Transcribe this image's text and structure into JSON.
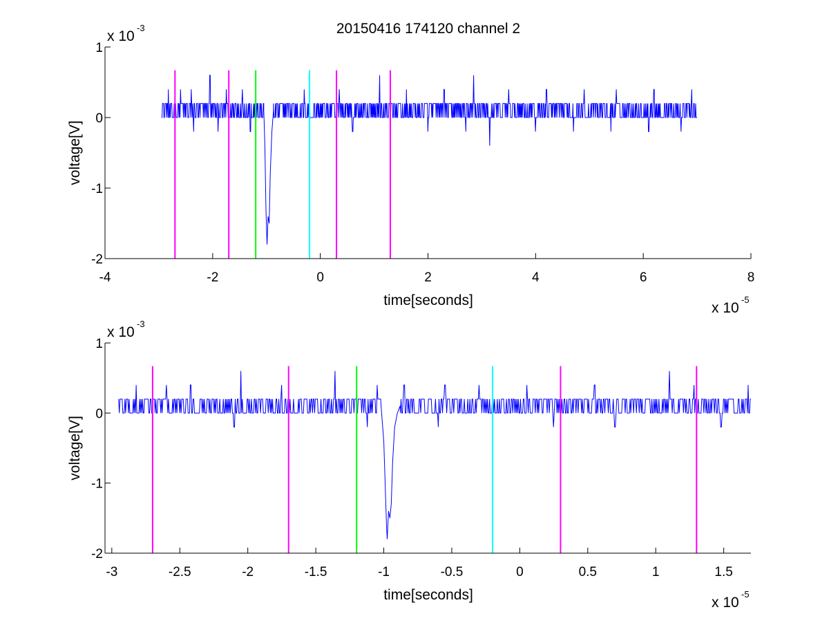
{
  "chart_data": [
    {
      "type": "line",
      "title": "20150416 174120 channel 2",
      "xlabel": "time[seconds]",
      "ylabel": "voltage[V]",
      "x_multiplier": {
        "base": "x 10",
        "exponent": "-5"
      },
      "y_multiplier": {
        "base": "x 10",
        "exponent": "-3"
      },
      "xlim": [
        -4,
        8
      ],
      "ylim": [
        -2,
        1
      ],
      "xticks": [
        -4,
        -2,
        0,
        2,
        4,
        6,
        8
      ],
      "xtick_labels": [
        "-4",
        "-2",
        "0",
        "2",
        "4",
        "6",
        "8"
      ],
      "yticks": [
        -2,
        -1,
        0,
        1
      ],
      "ytick_labels": [
        "-2",
        "-1",
        "0",
        "1"
      ],
      "grid": false,
      "signal": {
        "name": "",
        "color": "#0000ff",
        "x_start": -2.95,
        "x_end": 7.0,
        "baseline": 0.1,
        "noise_levels": [
          0,
          0.2
        ],
        "spikes": [
          {
            "x": -2.82,
            "y": 0.4
          },
          {
            "x": -2.6,
            "y": 0.4
          },
          {
            "x": -2.4,
            "y": 0.4
          },
          {
            "x": -2.05,
            "y": 0.6
          },
          {
            "x": -1.75,
            "y": 0.4
          },
          {
            "x": -1.45,
            "y": 0.4
          },
          {
            "x": -0.9,
            "y": 0.4
          },
          {
            "x": -0.3,
            "y": 0.4
          },
          {
            "x": 0.35,
            "y": 0.4
          },
          {
            "x": 1.1,
            "y": 0.6
          },
          {
            "x": 1.6,
            "y": 0.4
          },
          {
            "x": 2.3,
            "y": 0.4
          },
          {
            "x": 2.85,
            "y": 0.6
          },
          {
            "x": 3.5,
            "y": 0.4
          },
          {
            "x": 4.2,
            "y": 0.4
          },
          {
            "x": 4.9,
            "y": 0.4
          },
          {
            "x": 5.5,
            "y": 0.4
          },
          {
            "x": 6.2,
            "y": 0.4
          },
          {
            "x": 6.9,
            "y": 0.4
          },
          {
            "x": -2.35,
            "y": -0.2
          },
          {
            "x": -1.9,
            "y": -0.2
          },
          {
            "x": -1.3,
            "y": -0.2
          },
          {
            "x": 0.6,
            "y": -0.2
          },
          {
            "x": 1.3,
            "y": -0.2
          },
          {
            "x": 2.0,
            "y": -0.2
          },
          {
            "x": 2.7,
            "y": -0.2
          },
          {
            "x": 3.15,
            "y": -0.4
          },
          {
            "x": 4.0,
            "y": -0.2
          },
          {
            "x": 4.7,
            "y": -0.2
          },
          {
            "x": 5.4,
            "y": -0.2
          },
          {
            "x": 6.1,
            "y": -0.2
          },
          {
            "x": 6.7,
            "y": -0.2
          }
        ],
        "dip": [
          {
            "x": -1.05,
            "y": 0.1
          },
          {
            "x": -1.03,
            "y": -0.4
          },
          {
            "x": -1.01,
            "y": -1.3
          },
          {
            "x": -0.99,
            "y": -1.8
          },
          {
            "x": -0.97,
            "y": -1.4
          },
          {
            "x": -0.95,
            "y": -1.5
          },
          {
            "x": -0.93,
            "y": -0.8
          },
          {
            "x": -0.9,
            "y": -0.2
          },
          {
            "x": -0.87,
            "y": 0.1
          }
        ]
      },
      "markers": [
        {
          "x": -2.7,
          "y0": -2,
          "y1": 0.67,
          "color": "#ff00ff"
        },
        {
          "x": -1.7,
          "y0": -2,
          "y1": 0.67,
          "color": "#ff00ff"
        },
        {
          "x": -1.2,
          "y0": -2,
          "y1": 0.67,
          "color": "#00ff00"
        },
        {
          "x": -0.2,
          "y0": -2,
          "y1": 0.67,
          "color": "#00ffff"
        },
        {
          "x": 0.3,
          "y0": -2,
          "y1": 0.67,
          "color": "#ff00ff"
        },
        {
          "x": 1.3,
          "y0": -2,
          "y1": 0.67,
          "color": "#ff00ff"
        }
      ]
    },
    {
      "type": "line",
      "title": "",
      "xlabel": "time[seconds]",
      "ylabel": "voltage[V]",
      "x_multiplier": {
        "base": "x 10",
        "exponent": "-5"
      },
      "y_multiplier": {
        "base": "x 10",
        "exponent": "-3"
      },
      "xlim": [
        -3.05,
        1.7
      ],
      "ylim": [
        -2,
        1
      ],
      "xticks": [
        -3,
        -2.5,
        -2,
        -1.5,
        -1,
        -0.5,
        0,
        0.5,
        1,
        1.5
      ],
      "xtick_labels": [
        "-3",
        "-2.5",
        "-2",
        "-1.5",
        "-1",
        "-0.5",
        "0",
        "0.5",
        "1",
        "1.5"
      ],
      "yticks": [
        -2,
        -1,
        0,
        1
      ],
      "ytick_labels": [
        "-2",
        "-1",
        "0",
        "1"
      ],
      "grid": false,
      "signal": {
        "name": "",
        "color": "#0000ff",
        "x_start": -2.95,
        "x_end": 1.7,
        "baseline": 0.1,
        "noise_levels": [
          0,
          0.2
        ],
        "spikes": [
          {
            "x": -2.82,
            "y": 0.4
          },
          {
            "x": -2.6,
            "y": 0.4
          },
          {
            "x": -2.42,
            "y": 0.4
          },
          {
            "x": -2.05,
            "y": 0.6
          },
          {
            "x": -1.75,
            "y": 0.4
          },
          {
            "x": -1.36,
            "y": 0.6
          },
          {
            "x": -1.05,
            "y": 0.4
          },
          {
            "x": -0.85,
            "y": 0.4
          },
          {
            "x": -0.55,
            "y": 0.4
          },
          {
            "x": -0.3,
            "y": 0.4
          },
          {
            "x": 0.05,
            "y": 0.4
          },
          {
            "x": 0.55,
            "y": 0.4
          },
          {
            "x": 1.1,
            "y": 0.6
          },
          {
            "x": 1.28,
            "y": 0.4
          },
          {
            "x": 1.68,
            "y": 0.4
          },
          {
            "x": -2.1,
            "y": -0.2
          },
          {
            "x": -1.75,
            "y": -0.2
          },
          {
            "x": -1.12,
            "y": -0.2
          },
          {
            "x": -0.6,
            "y": -0.2
          },
          {
            "x": 0.25,
            "y": -0.2
          },
          {
            "x": 0.7,
            "y": -0.2
          },
          {
            "x": 1.48,
            "y": -0.2
          }
        ],
        "dip": [
          {
            "x": -1.02,
            "y": 0.1
          },
          {
            "x": -1.0,
            "y": -0.4
          },
          {
            "x": -0.99,
            "y": -1.0
          },
          {
            "x": -0.98,
            "y": -1.6
          },
          {
            "x": -0.975,
            "y": -1.8
          },
          {
            "x": -0.965,
            "y": -1.4
          },
          {
            "x": -0.955,
            "y": -1.5
          },
          {
            "x": -0.945,
            "y": -1.3
          },
          {
            "x": -0.935,
            "y": -0.7
          },
          {
            "x": -0.92,
            "y": -0.2
          },
          {
            "x": -0.9,
            "y": 0.0
          },
          {
            "x": -0.88,
            "y": 0.1
          }
        ]
      },
      "markers": [
        {
          "x": -2.7,
          "y0": -2,
          "y1": 0.67,
          "color": "#ff00ff"
        },
        {
          "x": -1.7,
          "y0": -2,
          "y1": 0.67,
          "color": "#ff00ff"
        },
        {
          "x": -1.2,
          "y0": -2,
          "y1": 0.67,
          "color": "#00ff00"
        },
        {
          "x": -0.2,
          "y0": -2,
          "y1": 0.67,
          "color": "#00ffff"
        },
        {
          "x": 0.3,
          "y0": -2,
          "y1": 0.67,
          "color": "#ff00ff"
        },
        {
          "x": 1.3,
          "y0": -2,
          "y1": 0.67,
          "color": "#ff00ff"
        }
      ]
    }
  ]
}
